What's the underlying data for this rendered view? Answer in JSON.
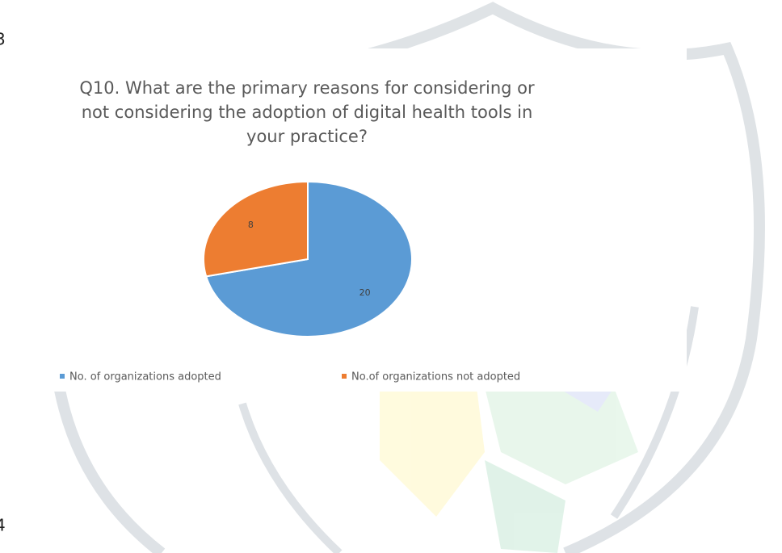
{
  "page_marks": [
    "3",
    "4"
  ],
  "chart_data": {
    "type": "pie",
    "title": [
      "Q10. What are the primary reasons for considering or",
      "not considering the adoption of digital health tools in",
      "your practice?"
    ],
    "categories": [
      "No. of organizations adopted",
      "No.of organizations not adopted"
    ],
    "values": [
      20,
      8
    ],
    "colors": [
      "#5b9bd5",
      "#ed7d31"
    ],
    "legend": "bottom"
  }
}
